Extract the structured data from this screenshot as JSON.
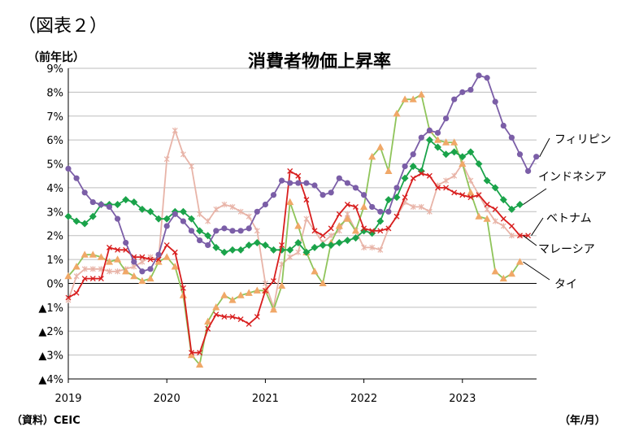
{
  "figure_label": "（図表２）",
  "unit_label": "（前年比）",
  "source_label": "（資料）CEIC",
  "x_unit_label": "（年/月）",
  "chart_data": {
    "type": "line",
    "title": "消費者物価上昇率",
    "ylabel": "（前年比）",
    "xlabel": "（年/月）",
    "ylim": [
      -4,
      9
    ],
    "y_ticks": [
      9,
      8,
      7,
      6,
      5,
      4,
      3,
      2,
      1,
      0,
      -1,
      -2,
      -3,
      -4
    ],
    "y_tick_labels": [
      "9%",
      "8%",
      "7%",
      "6%",
      "5%",
      "4%",
      "3%",
      "2%",
      "1%",
      "0%",
      "▲1%",
      "▲2%",
      "▲3%",
      "▲4%"
    ],
    "x_tick_labels": [
      "2019",
      "2020",
      "2021",
      "2022",
      "2023"
    ],
    "grid": "horizontal",
    "start_month": "2019-01",
    "series": [
      {
        "name": "フィリピン",
        "color": "#7b5ea7",
        "marker": "circle",
        "values": [
          4.8,
          4.4,
          3.8,
          3.4,
          3.3,
          3.2,
          2.7,
          1.7,
          0.9,
          0.5,
          0.6,
          1.2,
          2.4,
          2.9,
          2.6,
          2.2,
          1.8,
          1.6,
          2.2,
          2.3,
          2.2,
          2.2,
          2.3,
          3.0,
          3.3,
          3.7,
          4.3,
          4.2,
          4.2,
          4.2,
          4.1,
          3.7,
          3.8,
          4.4,
          4.2,
          4.0,
          3.7,
          3.2,
          3.0,
          3.0,
          4.0,
          4.9,
          5.4,
          6.1,
          6.4,
          6.3,
          6.9,
          7.7,
          8.0,
          8.1,
          8.7,
          8.6,
          7.6,
          6.6,
          6.1,
          5.4,
          4.7,
          5.3
        ]
      },
      {
        "name": "インドネシア",
        "color": "#1aa34a",
        "marker": "diamond",
        "values": [
          2.8,
          2.6,
          2.5,
          2.8,
          3.3,
          3.3,
          3.3,
          3.5,
          3.4,
          3.1,
          3.0,
          2.7,
          2.7,
          3.0,
          3.0,
          2.7,
          2.2,
          2.0,
          1.5,
          1.3,
          1.4,
          1.4,
          1.6,
          1.7,
          1.6,
          1.4,
          1.4,
          1.4,
          1.7,
          1.3,
          1.5,
          1.6,
          1.6,
          1.7,
          1.8,
          1.9,
          2.2,
          2.1,
          2.6,
          3.5,
          3.6,
          4.4,
          4.9,
          4.7,
          6.0,
          5.7,
          5.4,
          5.5,
          5.3,
          5.5,
          5.0,
          4.3,
          4.0,
          3.5,
          3.1,
          3.3
        ]
      },
      {
        "name": "ベトナム",
        "color": "#d81e1e",
        "marker": "cross",
        "values": [
          -0.6,
          -0.4,
          0.2,
          0.2,
          0.2,
          1.5,
          1.4,
          1.4,
          1.1,
          1.1,
          1.0,
          1.0,
          1.6,
          1.3,
          -0.2,
          -2.9,
          -2.9,
          -1.9,
          -1.3,
          -1.4,
          -1.4,
          -1.5,
          -1.7,
          -1.4,
          -0.3,
          0.1,
          1.6,
          4.7,
          4.5,
          3.5,
          2.2,
          2.0,
          2.3,
          2.9,
          3.3,
          3.2,
          2.3,
          2.2,
          2.2,
          2.3,
          2.8,
          3.6,
          4.4,
          4.6,
          4.5,
          4.0,
          4.0,
          3.8,
          3.7,
          3.6,
          3.7,
          3.3,
          3.1,
          2.7,
          2.4,
          2.0,
          2.0
        ]
      },
      {
        "name": "マレーシア",
        "color": "#e8b4a8",
        "marker": "star",
        "values": [
          -0.7,
          0.3,
          0.6,
          0.6,
          0.6,
          0.5,
          0.5,
          0.6,
          0.7,
          0.9,
          1.1,
          1.0,
          5.2,
          6.4,
          5.4,
          4.9,
          2.9,
          2.6,
          3.1,
          3.3,
          3.2,
          3.0,
          2.8,
          2.2,
          0.0,
          -1.0,
          0.8,
          1.1,
          1.3,
          2.7,
          2.2,
          1.7,
          2.0,
          2.2,
          2.9,
          2.2,
          1.5,
          1.5,
          1.4,
          2.3,
          2.8,
          3.4,
          3.2,
          3.2,
          3.0,
          4.1,
          4.3,
          4.5,
          5.0,
          4.3,
          3.7,
          3.1,
          2.6,
          2.4,
          2.0,
          2.0
        ]
      },
      {
        "name": "タイ",
        "color": "#8fc45a",
        "marker": "triangle",
        "marker_color": "#f0a868",
        "values": [
          0.3,
          0.7,
          1.2,
          1.2,
          1.1,
          0.9,
          1.0,
          0.5,
          0.3,
          0.1,
          0.2,
          0.9,
          1.1,
          0.7,
          -0.5,
          -3.0,
          -3.4,
          -1.6,
          -1.0,
          -0.5,
          -0.7,
          -0.5,
          -0.4,
          -0.3,
          -0.3,
          -1.1,
          -0.1,
          3.4,
          2.4,
          1.3,
          0.5,
          0.0,
          1.7,
          2.4,
          2.7,
          2.2,
          3.2,
          5.3,
          5.7,
          4.7,
          7.1,
          7.7,
          7.7,
          7.9,
          6.4,
          6.0,
          5.9,
          5.9,
          5.0,
          3.8,
          2.8,
          2.7,
          0.5,
          0.2,
          0.4,
          0.9
        ]
      }
    ]
  }
}
